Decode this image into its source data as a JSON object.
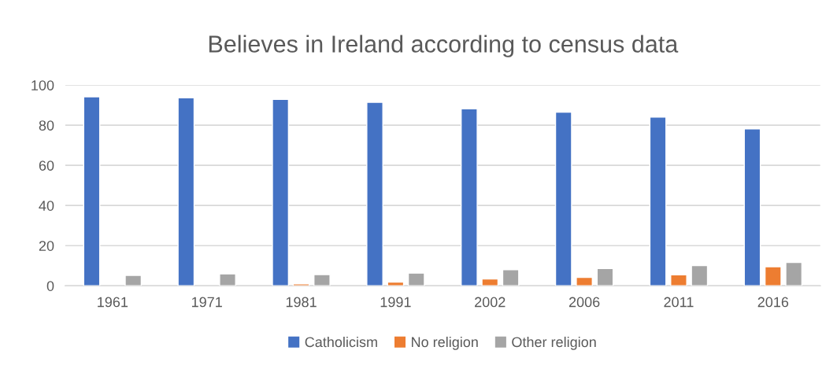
{
  "chart_data": {
    "type": "bar",
    "title": "Believes in Ireland according to census data",
    "categories": [
      "1961",
      "1971",
      "1981",
      "1991",
      "2002",
      "2006",
      "2011",
      "2016"
    ],
    "series": [
      {
        "name": "Catholicism",
        "color": "#4472c4",
        "values": [
          94.2,
          93.7,
          92.9,
          91.4,
          88.2,
          86.5,
          84.1,
          78.2
        ]
      },
      {
        "name": "No religion",
        "color": "#ed7d31",
        "values": [
          null,
          null,
          0.9,
          1.8,
          3.4,
          4.2,
          5.5,
          9.5
        ]
      },
      {
        "name": "Other religion",
        "color": "#a5a5a5",
        "values": [
          5.2,
          5.9,
          5.6,
          6.3,
          8.0,
          8.6,
          10.1,
          11.6
        ]
      }
    ],
    "ylim": [
      0,
      100
    ],
    "yticks": [
      0,
      20,
      40,
      60,
      80,
      100
    ],
    "grid": "y",
    "legend": "bottom"
  }
}
